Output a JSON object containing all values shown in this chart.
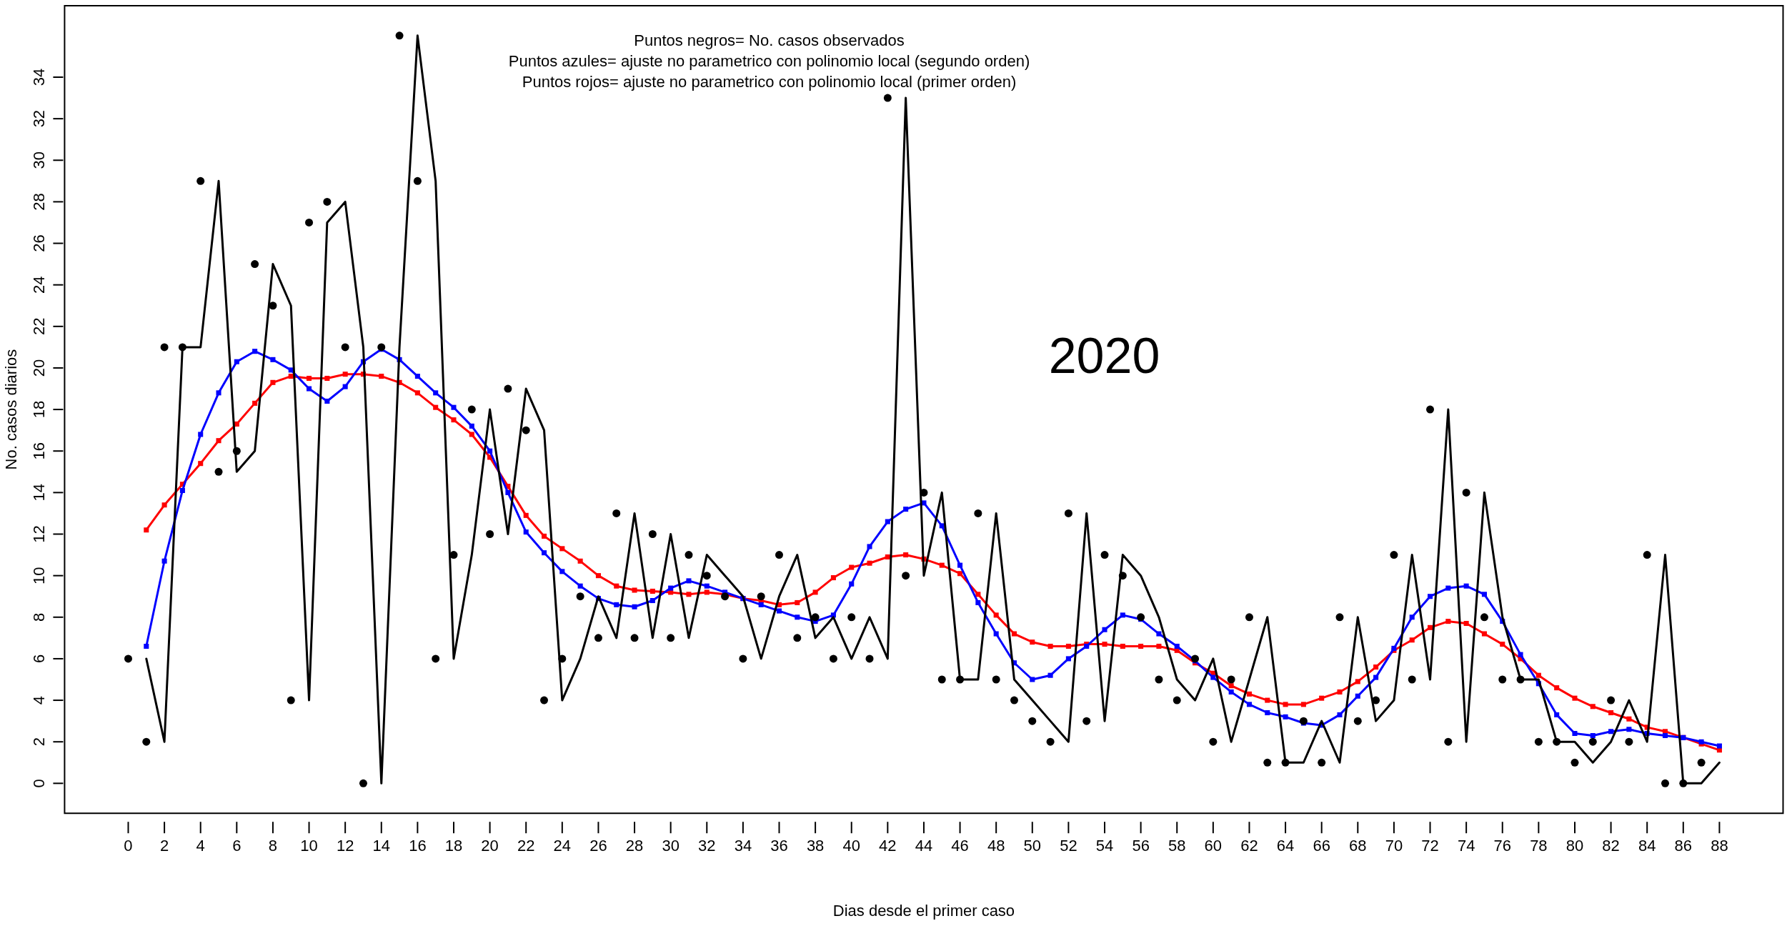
{
  "chart_data": {
    "type": "line",
    "xlabel": "Dias desde el primer caso",
    "ylabel": "No. casos diarios",
    "annotations": [
      "Puntos negros= No. casos observados",
      "Puntos azules= ajuste no parametrico con polinomio local (segundo orden)",
      "Puntos rojos= ajuste no parametrico con polinomio local (primer orden)",
      "2020"
    ],
    "xlim": [
      -3.52,
      91.52
    ],
    "ylim": [
      -1.44,
      37.44
    ],
    "xticks": [
      0,
      2,
      4,
      6,
      8,
      10,
      12,
      14,
      16,
      18,
      20,
      22,
      24,
      26,
      28,
      30,
      32,
      34,
      36,
      38,
      40,
      42,
      44,
      46,
      48,
      50,
      52,
      54,
      56,
      58,
      60,
      62,
      64,
      66,
      68,
      70,
      72,
      74,
      76,
      78,
      80,
      82,
      84,
      86,
      88
    ],
    "yticks": [
      0,
      2,
      4,
      6,
      8,
      10,
      12,
      14,
      16,
      18,
      20,
      22,
      24,
      26,
      28,
      30,
      32,
      34
    ],
    "grid": false,
    "legend": false,
    "series": [
      {
        "type": "scatter",
        "color": "#000000",
        "marker": "circle",
        "x": [
          0,
          1,
          2,
          3,
          4,
          5,
          6,
          7,
          8,
          9,
          10,
          11,
          12,
          13,
          14,
          15,
          16,
          17,
          18,
          19,
          20,
          21,
          22,
          23,
          24,
          25,
          26,
          27,
          28,
          29,
          30,
          31,
          32,
          33,
          34,
          35,
          36,
          37,
          38,
          39,
          40,
          41,
          42,
          43,
          44,
          45,
          46,
          47,
          48,
          49,
          50,
          51,
          52,
          53,
          54,
          55,
          56,
          57,
          58,
          59,
          60,
          61,
          62,
          63,
          64,
          65,
          66,
          67,
          68,
          69,
          70,
          71,
          72,
          73,
          74,
          75,
          76,
          77,
          78,
          79,
          80,
          81,
          82,
          83,
          84,
          85,
          86,
          87
        ],
        "values": [
          6,
          2,
          21,
          21,
          29,
          15,
          16,
          25,
          23,
          4,
          27,
          28,
          21,
          0,
          21,
          36,
          29,
          6,
          11,
          18,
          12,
          19,
          17,
          4,
          6,
          9,
          7,
          13,
          7,
          12,
          7,
          11,
          10,
          9,
          6,
          9,
          11,
          7,
          8,
          6,
          8,
          6,
          33,
          10,
          14,
          5,
          5,
          13,
          5,
          4,
          3,
          2,
          13,
          3,
          11,
          10,
          8,
          5,
          4,
          6,
          2,
          5,
          8,
          1,
          1,
          3,
          1,
          8,
          3,
          4,
          11,
          5,
          18,
          2,
          14,
          8,
          5,
          5,
          2,
          2,
          1,
          2,
          4,
          2,
          11,
          0,
          0,
          1
        ]
      },
      {
        "type": "line",
        "color": "#000000",
        "marker": "none",
        "line_style": "solid",
        "x": [
          1,
          2,
          3,
          4,
          5,
          6,
          7,
          8,
          9,
          10,
          11,
          12,
          13,
          14,
          15,
          16,
          17,
          18,
          19,
          20,
          21,
          22,
          23,
          24,
          25,
          26,
          27,
          28,
          29,
          30,
          31,
          32,
          33,
          34,
          35,
          36,
          37,
          38,
          39,
          40,
          41,
          42,
          43,
          44,
          45,
          46,
          47,
          48,
          49,
          50,
          51,
          52,
          53,
          54,
          55,
          56,
          57,
          58,
          59,
          60,
          61,
          62,
          63,
          64,
          65,
          66,
          67,
          68,
          69,
          70,
          71,
          72,
          73,
          74,
          75,
          76,
          77,
          78,
          79,
          80,
          81,
          82,
          83,
          84,
          85,
          86,
          87,
          88
        ],
        "values": [
          6,
          2,
          21,
          21,
          29,
          15,
          16,
          25,
          23,
          4,
          27,
          28,
          21,
          0,
          21,
          36,
          29,
          6,
          11,
          18,
          12,
          19,
          17,
          4,
          6,
          9,
          7,
          13,
          7,
          12,
          7,
          11,
          10,
          9,
          6,
          9,
          11,
          7,
          8,
          6,
          8,
          6,
          33,
          10,
          14,
          5,
          5,
          13,
          5,
          4,
          3,
          2,
          13,
          3,
          11,
          10,
          8,
          5,
          4,
          6,
          2,
          5,
          8,
          1,
          1,
          3,
          1,
          8,
          3,
          4,
          11,
          5,
          18,
          2,
          14,
          8,
          5,
          5,
          2,
          2,
          1,
          2,
          4,
          2,
          11,
          0,
          0,
          1
        ]
      },
      {
        "type": "line",
        "color": "#0000ff",
        "marker": "square",
        "line_style": "solid",
        "x": [
          1,
          2,
          3,
          4,
          5,
          6,
          7,
          8,
          9,
          10,
          11,
          12,
          13,
          14,
          15,
          16,
          17,
          18,
          19,
          20,
          21,
          22,
          23,
          24,
          25,
          26,
          27,
          28,
          29,
          30,
          31,
          32,
          33,
          34,
          35,
          36,
          37,
          38,
          39,
          40,
          41,
          42,
          43,
          44,
          45,
          46,
          47,
          48,
          49,
          50,
          51,
          52,
          53,
          54,
          55,
          56,
          57,
          58,
          59,
          60,
          61,
          62,
          63,
          64,
          65,
          66,
          67,
          68,
          69,
          70,
          71,
          72,
          73,
          74,
          75,
          76,
          77,
          78,
          79,
          80,
          81,
          82,
          83,
          84,
          85,
          86,
          87,
          88
        ],
        "values": [
          6.6,
          10.7,
          14.1,
          16.8,
          18.8,
          20.3,
          20.8,
          20.4,
          19.9,
          19.0,
          18.4,
          19.1,
          20.3,
          20.9,
          20.4,
          19.6,
          18.8,
          18.1,
          17.2,
          16.0,
          14.0,
          12.1,
          11.1,
          10.2,
          9.5,
          8.9,
          8.6,
          8.5,
          8.8,
          9.4,
          9.75,
          9.5,
          9.2,
          8.9,
          8.6,
          8.3,
          8.0,
          7.8,
          8.1,
          9.6,
          11.4,
          12.6,
          13.2,
          13.5,
          12.4,
          10.5,
          8.7,
          7.2,
          5.8,
          5.0,
          5.2,
          6.0,
          6.6,
          7.4,
          8.1,
          7.9,
          7.2,
          6.6,
          5.9,
          5.1,
          4.4,
          3.8,
          3.4,
          3.2,
          2.9,
          2.8,
          3.3,
          4.2,
          5.1,
          6.5,
          8.0,
          9.0,
          9.4,
          9.5,
          9.1,
          7.8,
          6.2,
          4.8,
          3.3,
          2.4,
          2.3,
          2.5,
          2.6,
          2.4,
          2.3,
          2.2,
          2.0,
          1.8
        ]
      },
      {
        "type": "line",
        "color": "#ff0000",
        "marker": "square",
        "line_style": "solid",
        "x": [
          1,
          2,
          3,
          4,
          5,
          6,
          7,
          8,
          9,
          10,
          11,
          12,
          13,
          14,
          15,
          16,
          17,
          18,
          19,
          20,
          21,
          22,
          23,
          24,
          25,
          26,
          27,
          28,
          29,
          30,
          31,
          32,
          33,
          34,
          35,
          36,
          37,
          38,
          39,
          40,
          41,
          42,
          43,
          44,
          45,
          46,
          47,
          48,
          49,
          50,
          51,
          52,
          53,
          54,
          55,
          56,
          57,
          58,
          59,
          60,
          61,
          62,
          63,
          64,
          65,
          66,
          67,
          68,
          69,
          70,
          71,
          72,
          73,
          74,
          75,
          76,
          77,
          78,
          79,
          80,
          81,
          82,
          83,
          84,
          85,
          86,
          87,
          88
        ],
        "values": [
          12.2,
          13.4,
          14.4,
          15.4,
          16.5,
          17.3,
          18.3,
          19.3,
          19.6,
          19.5,
          19.5,
          19.7,
          19.7,
          19.6,
          19.3,
          18.8,
          18.1,
          17.5,
          16.8,
          15.7,
          14.3,
          12.9,
          11.9,
          11.3,
          10.7,
          10.0,
          9.5,
          9.3,
          9.25,
          9.2,
          9.1,
          9.2,
          9.1,
          8.9,
          8.8,
          8.6,
          8.7,
          9.2,
          9.9,
          10.4,
          10.6,
          10.9,
          11.0,
          10.8,
          10.5,
          10.1,
          9.1,
          8.1,
          7.2,
          6.8,
          6.6,
          6.6,
          6.7,
          6.7,
          6.6,
          6.6,
          6.6,
          6.4,
          5.8,
          5.3,
          4.7,
          4.3,
          4.0,
          3.8,
          3.8,
          4.1,
          4.4,
          4.9,
          5.6,
          6.4,
          6.9,
          7.5,
          7.8,
          7.7,
          7.2,
          6.7,
          6.0,
          5.2,
          4.6,
          4.1,
          3.7,
          3.4,
          3.1,
          2.7,
          2.5,
          2.2,
          1.9,
          1.6
        ]
      }
    ]
  }
}
